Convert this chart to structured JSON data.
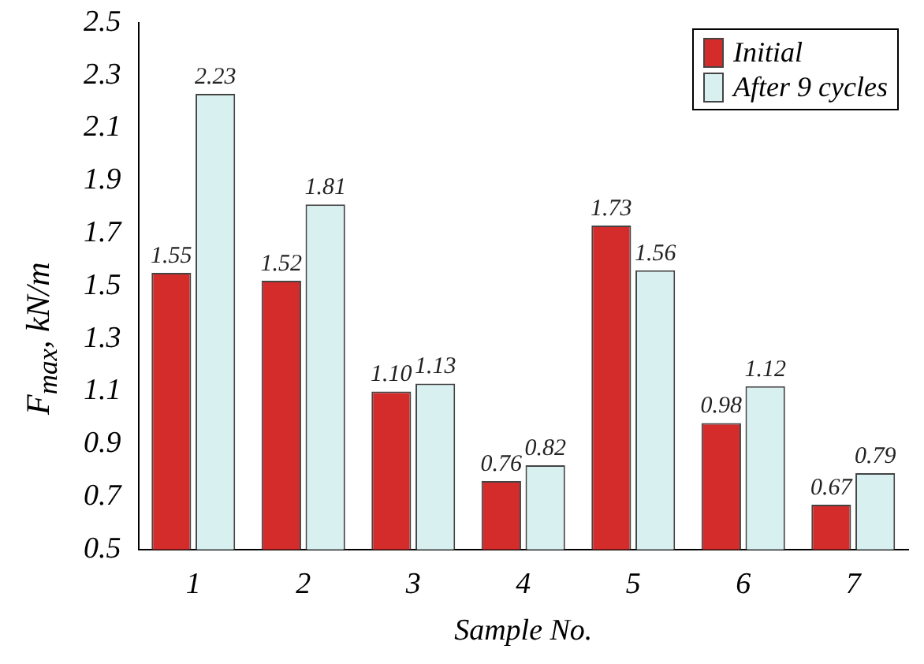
{
  "chart_data": {
    "type": "bar",
    "xlabel": "Sample No.",
    "ylabel": "F$_{max}$, kN/m",
    "categories": [
      "1",
      "2",
      "3",
      "4",
      "5",
      "6",
      "7"
    ],
    "series": [
      {
        "name": "Initial",
        "color": "#d42b2b",
        "values": [
          1.55,
          1.52,
          1.1,
          0.76,
          1.73,
          0.98,
          0.67
        ],
        "value_labels": [
          "1.55",
          "1.52",
          "1.10",
          "0.76",
          "1.73",
          "0.98",
          "0.67"
        ]
      },
      {
        "name": "After 9 cycles",
        "color": "#d8f0f0",
        "values": [
          2.23,
          1.81,
          1.13,
          0.82,
          1.56,
          1.12,
          0.79
        ],
        "value_labels": [
          "2.23",
          "1.81",
          "1.13",
          "0.82",
          "1.56",
          "1.12",
          "0.79"
        ]
      }
    ],
    "ylim": [
      0.5,
      2.5
    ],
    "yticks": [
      0.5,
      0.7,
      0.9,
      1.1,
      1.3,
      1.5,
      1.7,
      1.9,
      2.1,
      2.3,
      2.5
    ],
    "grid": false,
    "legend": "top right"
  }
}
